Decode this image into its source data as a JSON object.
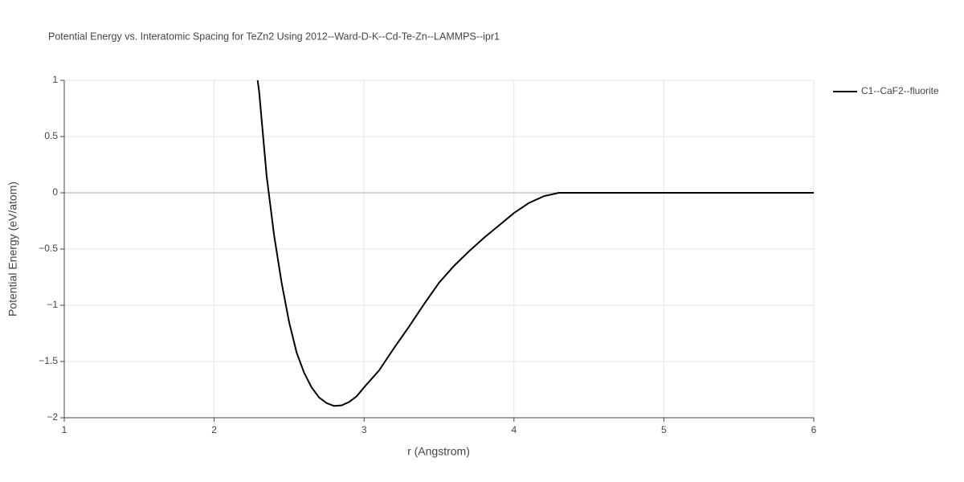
{
  "chart_data": {
    "type": "line",
    "title": "Potential Energy vs. Interatomic Spacing for TeZn2 Using 2012--Ward-D-K--Cd-Te-Zn--LAMMPS--ipr1",
    "x_label": "r (Angstrom)",
    "y_label": "Potential Energy (eV/atom)",
    "x": [
      2.29,
      2.3,
      2.35,
      2.4,
      2.45,
      2.5,
      2.55,
      2.6,
      2.65,
      2.7,
      2.75,
      2.8,
      2.85,
      2.9,
      2.95,
      3.0,
      3.1,
      3.2,
      3.3,
      3.4,
      3.5,
      3.6,
      3.7,
      3.8,
      3.9,
      4.0,
      4.1,
      4.2,
      4.3,
      4.5,
      5.0,
      5.5,
      6.0
    ],
    "series": [
      {
        "name": "C1--CaF2--fluorite",
        "color": "#000000",
        "values": [
          1.0,
          0.9,
          0.15,
          -0.38,
          -0.8,
          -1.15,
          -1.42,
          -1.6,
          -1.73,
          -1.82,
          -1.87,
          -1.895,
          -1.89,
          -1.86,
          -1.81,
          -1.73,
          -1.58,
          -1.38,
          -1.19,
          -0.99,
          -0.8,
          -0.65,
          -0.52,
          -0.4,
          -0.29,
          -0.18,
          -0.09,
          -0.03,
          0,
          0,
          0,
          0,
          0
        ]
      }
    ],
    "xlim": [
      1,
      6
    ],
    "xticks": [
      1,
      2,
      3,
      4,
      5,
      6
    ],
    "ylim": [
      -2,
      1
    ],
    "yticks": [
      {
        "value": -2,
        "label": "−2"
      },
      {
        "value": -1.5,
        "label": "−1.5"
      },
      {
        "value": -1,
        "label": "−1"
      },
      {
        "value": -0.5,
        "label": "−0.5"
      },
      0,
      0.5,
      1
    ],
    "grid": true
  }
}
